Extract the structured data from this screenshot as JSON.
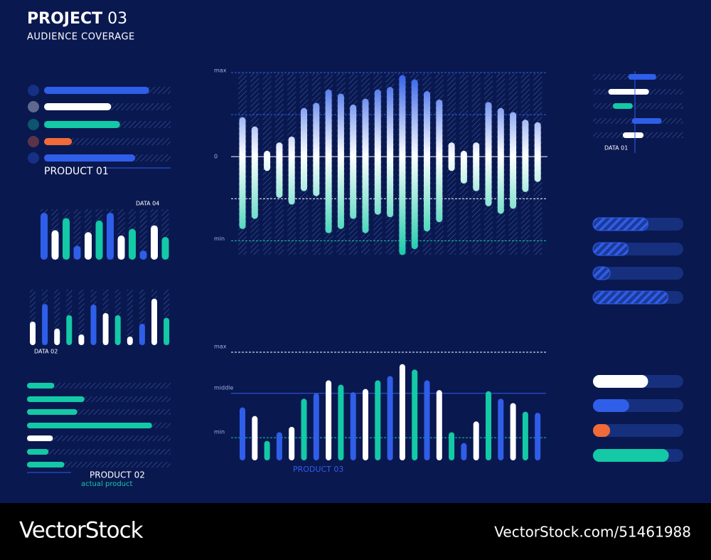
{
  "header": {
    "title": "PROJECT",
    "title_number": "03",
    "subtitle": "AUDIENCE COVERAGE"
  },
  "chart_data": [
    {
      "type": "hbar",
      "label": "PRODUCT 01",
      "xlim": [
        0,
        100
      ],
      "values": [
        83,
        53,
        60,
        22,
        72
      ],
      "colors": [
        "#2f5ee8",
        "#ffffff",
        "#13c9a6",
        "#f06a3a",
        "#2f5ee8"
      ]
    },
    {
      "type": "bar",
      "label": "DATA 04",
      "ylim": [
        0,
        100
      ],
      "values": [
        97,
        61,
        86,
        29,
        57,
        81,
        97,
        50,
        64,
        19,
        71,
        47
      ],
      "colors": [
        "#2f5ee8",
        "#ffffff",
        "#13c9a6",
        "#2f5ee8",
        "#ffffff",
        "#13c9a6",
        "#2f5ee8",
        "#ffffff",
        "#13c9a6",
        "#2f5ee8",
        "#ffffff",
        "#13c9a6"
      ]
    },
    {
      "type": "bar",
      "label": "DATA 02",
      "ylim": [
        0,
        100
      ],
      "values": [
        44,
        77,
        31,
        56,
        20,
        76,
        60,
        56,
        16,
        40,
        87,
        51
      ],
      "colors": [
        "#ffffff",
        "#2f5ee8",
        "#ffffff",
        "#13c9a6",
        "#ffffff",
        "#2f5ee8",
        "#ffffff",
        "#13c9a6",
        "#ffffff",
        "#2f5ee8",
        "#ffffff",
        "#13c9a6"
      ]
    },
    {
      "type": "hbar",
      "label": "PRODUCT 02",
      "sublabel": "actual product",
      "xlim": [
        0,
        100
      ],
      "values": [
        19,
        40,
        35,
        87,
        18,
        15,
        26
      ],
      "colors": [
        "#13c9a6",
        "#13c9a6",
        "#13c9a6",
        "#13c9a6",
        "#ffffff",
        "#13c9a6",
        "#13c9a6"
      ]
    },
    {
      "type": "range_bar",
      "ylim": [
        -120,
        100
      ],
      "yticks": [
        {
          "value": 100,
          "label": "max"
        },
        0,
        {
          "value": -100,
          "label": "min"
        }
      ],
      "gridlines": [
        50,
        -50
      ],
      "low": [
        -86,
        -74,
        -17,
        -49,
        -57,
        -41,
        -47,
        -91,
        -86,
        -74,
        -91,
        -69,
        -72,
        -117,
        -110,
        -89,
        -78,
        -17,
        -32,
        -41,
        -59,
        -68,
        -62,
        -42,
        -30
      ],
      "high": [
        47,
        36,
        7,
        17,
        24,
        58,
        64,
        80,
        75,
        62,
        69,
        80,
        83,
        97,
        92,
        78,
        68,
        17,
        7,
        17,
        65,
        58,
        53,
        44,
        41
      ]
    },
    {
      "type": "bar",
      "label": "PRODUCT 03",
      "ylim": [
        0,
        100
      ],
      "yticks": [
        {
          "value": 21,
          "label": "min"
        },
        {
          "value": 62,
          "label": "middle"
        },
        {
          "value": 100,
          "label": "max"
        }
      ],
      "values": [
        49,
        41,
        18,
        26,
        31,
        57,
        62,
        74,
        70,
        63,
        66,
        74,
        78,
        89,
        84,
        74,
        65,
        26,
        16,
        36,
        64,
        57,
        53,
        45,
        44
      ],
      "colors": [
        "#2f5ee8",
        "#ffffff",
        "#13c9a6",
        "#2f5ee8",
        "#ffffff",
        "#13c9a6",
        "#2f5ee8",
        "#ffffff",
        "#13c9a6",
        "#2f5ee8",
        "#ffffff",
        "#13c9a6",
        "#2f5ee8",
        "#ffffff",
        "#13c9a6",
        "#2f5ee8",
        "#ffffff",
        "#13c9a6",
        "#2f5ee8",
        "#ffffff",
        "#13c9a6",
        "#2f5ee8",
        "#ffffff",
        "#13c9a6",
        "#2f5ee8"
      ]
    },
    {
      "type": "range_hbar",
      "label": "DATA 01",
      "xlim": [
        0,
        100
      ],
      "start": [
        39,
        17,
        22,
        43,
        33
      ],
      "end": [
        70,
        62,
        44,
        76,
        56
      ],
      "colors": [
        "#2f5ee8",
        "#ffffff",
        "#13c9a6",
        "#2f5ee8",
        "#ffffff"
      ]
    },
    {
      "type": "progress",
      "striped": true,
      "xlim": [
        0,
        100
      ],
      "values": [
        61,
        39,
        19,
        83
      ],
      "colors": [
        "#2f5ee8",
        "#2f5ee8",
        "#2f5ee8",
        "#2f5ee8"
      ]
    },
    {
      "type": "progress",
      "striped": false,
      "xlim": [
        0,
        100
      ],
      "values": [
        61,
        40,
        19,
        84
      ],
      "colors": [
        "#ffffff",
        "#2f5ee8",
        "#f06a3a",
        "#13c9a6"
      ]
    }
  ],
  "footer": {
    "brand": "VectorStock",
    "url": "VectorStock.com/51461988"
  }
}
